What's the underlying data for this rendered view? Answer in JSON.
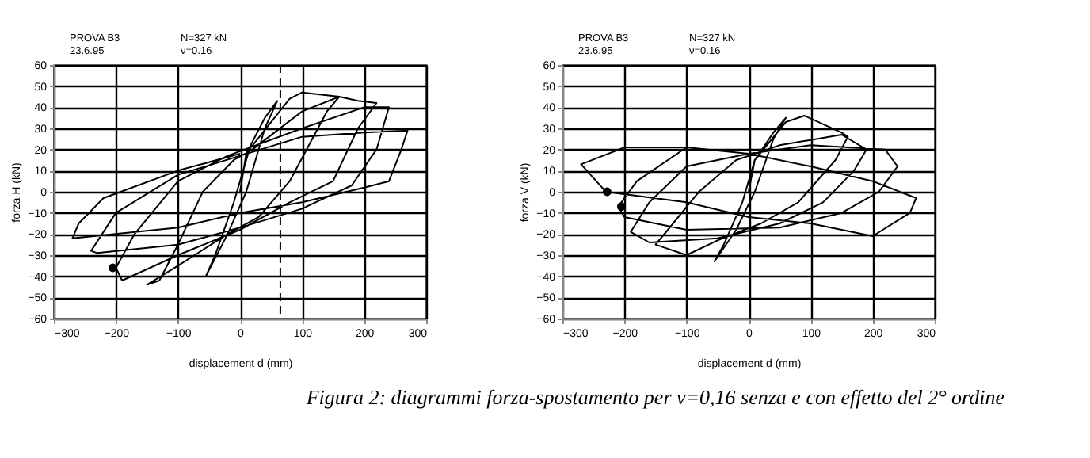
{
  "chart_data": [
    {
      "type": "line",
      "xlabel": "displacement d (mm)",
      "ylabel": "forza H (kN)",
      "annotations": [
        "PROVA B3",
        "23.6.95",
        "N=327 kN",
        "ν=0.16"
      ],
      "xlim": [
        -300,
        300
      ],
      "xticks": [
        -300,
        -200,
        -100,
        0,
        100,
        200,
        300
      ],
      "ylim": [
        -60,
        60
      ],
      "yticks": [
        -60,
        -50,
        -40,
        -30,
        -20,
        -10,
        0,
        10,
        20,
        30,
        40,
        50,
        60
      ],
      "grid": true,
      "marker": "none",
      "line_style": "solid",
      "ref_lines": [
        {
          "axis": "x",
          "value": 65,
          "line_style": "dashed",
          "color": "#000000"
        }
      ],
      "series": [
        {
          "type": "line",
          "color": "#000000",
          "x": [
            0,
            10,
            40,
            60,
            40,
            10,
            -20,
            -55,
            -40,
            -10,
            15,
            80,
            100,
            160,
            140,
            80,
            30,
            -20,
            -100,
            -150,
            -130,
            -100,
            -60,
            -10,
            20,
            100,
            160,
            190,
            220,
            190,
            150,
            80,
            0,
            -100,
            -190,
            -200,
            -170,
            -100,
            -20,
            100,
            200,
            240,
            220,
            180,
            100,
            0,
            -100,
            -230,
            -240,
            -200,
            -100,
            0,
            100,
            200,
            270,
            260,
            240,
            200,
            100,
            0,
            -100,
            -270,
            -260,
            -220,
            -100,
            0
          ],
          "values": [
            0,
            18,
            35,
            43,
            30,
            0,
            -20,
            -40,
            -30,
            -5,
            20,
            44,
            47,
            45,
            38,
            5,
            -12,
            -20,
            -35,
            -44,
            -42,
            -25,
            0,
            15,
            20,
            38,
            45,
            43,
            42,
            30,
            5,
            -5,
            -18,
            -30,
            -42,
            -36,
            -20,
            5,
            17,
            30,
            40,
            40,
            20,
            3,
            -8,
            -17,
            -25,
            -29,
            -28,
            -10,
            8,
            17,
            26,
            28,
            29,
            20,
            5,
            2,
            -5,
            -10,
            -17,
            -22,
            -15,
            -3,
            10,
            18
          ]
        },
        {
          "type": "scatter",
          "marker": "circle",
          "color": "#000000",
          "x": [
            -205
          ],
          "values": [
            -36
          ]
        }
      ]
    },
    {
      "type": "line",
      "xlabel": "displacement d (mm)",
      "ylabel": "forza V (kN)",
      "annotations": [
        "PROVA B3",
        "23.6.95",
        "N=327 kN",
        "ν=0.16"
      ],
      "xlim": [
        -300,
        300
      ],
      "xticks": [
        -300,
        -200,
        -100,
        0,
        100,
        200,
        300
      ],
      "ylim": [
        -60,
        60
      ],
      "yticks": [
        -60,
        -50,
        -40,
        -30,
        -20,
        -10,
        0,
        10,
        20,
        30,
        40,
        50,
        60
      ],
      "grid": true,
      "marker": "none",
      "line_style": "solid",
      "series": [
        {
          "type": "line",
          "color": "#000000",
          "x": [
            0,
            10,
            40,
            60,
            40,
            10,
            -20,
            -55,
            -40,
            -10,
            10,
            60,
            90,
            150,
            160,
            140,
            80,
            20,
            -50,
            -100,
            -150,
            -130,
            -80,
            -20,
            50,
            150,
            190,
            170,
            120,
            50,
            -50,
            -160,
            -190,
            -160,
            -100,
            0,
            100,
            220,
            240,
            210,
            150,
            50,
            -100,
            -200,
            -210,
            -180,
            -100,
            0,
            100,
            200,
            270,
            260,
            200,
            150,
            100,
            0,
            -100,
            -230,
            -270,
            -200,
            -100,
            0
          ],
          "values": [
            0,
            15,
            28,
            35,
            25,
            0,
            -18,
            -33,
            -25,
            -5,
            15,
            33,
            36,
            28,
            26,
            15,
            -5,
            -15,
            -23,
            -30,
            -25,
            -18,
            0,
            15,
            22,
            27,
            20,
            10,
            -5,
            -15,
            -22,
            -24,
            -19,
            -5,
            12,
            18,
            22,
            20,
            12,
            0,
            -10,
            -17,
            -18,
            -12,
            -7,
            5,
            21,
            18,
            12,
            5,
            -3,
            -10,
            -21,
            -18,
            -15,
            -12,
            -5,
            0,
            13,
            21,
            21,
            18
          ]
        },
        {
          "type": "scatter",
          "marker": "circle",
          "color": "#000000",
          "x": [
            -228,
            -205
          ],
          "values": [
            0,
            -7
          ]
        }
      ]
    },
    {
      "type": "other",
      "annotations": [
        "Figura 2: diagrammi forza-spostamento per ν=0,16 senza e con effetto del 2° ordine"
      ]
    }
  ]
}
